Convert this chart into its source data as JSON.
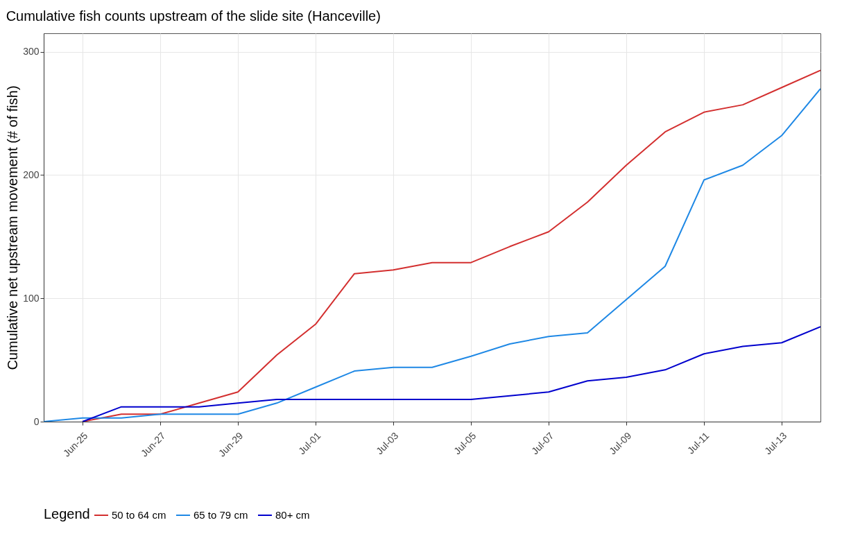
{
  "chart_data": {
    "type": "line",
    "title": "Cumulative fish counts upstream of the slide site (Hanceville)",
    "ylabel": "Cumulative net upstream movement (# of fish)",
    "legend_title": "Legend",
    "x": [
      "--06-24",
      "--06-25",
      "--06-26",
      "--06-27",
      "--06-28",
      "--06-29",
      "--06-30",
      "--07-01",
      "--07-02",
      "--07-03",
      "--07-04",
      "--07-05",
      "--07-06",
      "--07-07",
      "--07-08",
      "--07-09",
      "--07-10",
      "--07-11",
      "--07-12",
      "--07-13",
      "--07-14"
    ],
    "series": [
      {
        "name": "50 to 64 cm",
        "color": "#d32f2f",
        "values": [
          null,
          0,
          6,
          6,
          15,
          24,
          54,
          79,
          120,
          123,
          129,
          129,
          142,
          154,
          178,
          208,
          235,
          251,
          257,
          271,
          285
        ]
      },
      {
        "name": "65 to 79 cm",
        "color": "#1e88e5",
        "values": [
          0,
          3,
          3,
          6,
          6,
          6,
          15,
          28,
          41,
          44,
          44,
          53,
          63,
          69,
          72,
          99,
          126,
          196,
          208,
          232,
          270
        ]
      },
      {
        "name": "80+ cm",
        "color": "#0000cd",
        "values": [
          null,
          0,
          12,
          12,
          12,
          15,
          18,
          18,
          18,
          18,
          18,
          18,
          21,
          24,
          33,
          36,
          42,
          55,
          61,
          64,
          77
        ]
      }
    ],
    "xlim": [
      "--06-24",
      "--07-14"
    ],
    "xticks": [
      {
        "value": "--06-25",
        "label": "Jun-25"
      },
      {
        "value": "--06-27",
        "label": "Jun-27"
      },
      {
        "value": "--06-29",
        "label": "Jun-29"
      },
      {
        "value": "--07-01",
        "label": "Jul-01"
      },
      {
        "value": "--07-03",
        "label": "Jul-03"
      },
      {
        "value": "--07-05",
        "label": "Jul-05"
      },
      {
        "value": "--07-07",
        "label": "Jul-07"
      },
      {
        "value": "--07-09",
        "label": "Jul-09"
      },
      {
        "value": "--07-11",
        "label": "Jul-11"
      },
      {
        "value": "--07-13",
        "label": "Jul-13"
      }
    ],
    "ylim": [
      0,
      315
    ],
    "yticks": [
      0,
      100,
      200,
      300
    ],
    "grid": true,
    "legend": "bottom",
    "line_style": "solid"
  }
}
